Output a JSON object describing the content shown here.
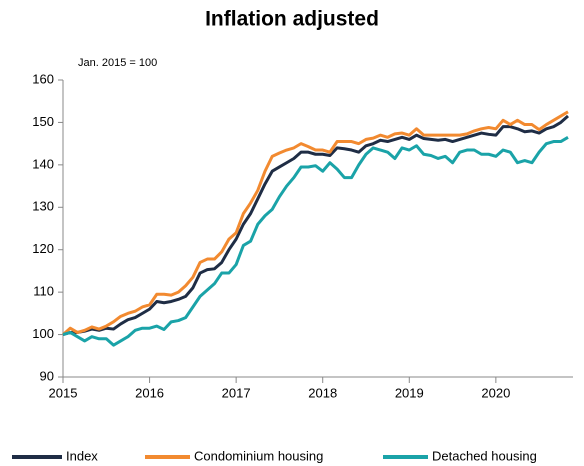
{
  "chart_data": {
    "type": "line",
    "title": "Inflation adjusted",
    "annotation": "Jan. 2015 = 100",
    "categories": [
      "2015",
      null,
      null,
      null,
      null,
      null,
      null,
      null,
      null,
      null,
      null,
      null,
      "2016",
      null,
      null,
      null,
      null,
      null,
      null,
      null,
      null,
      null,
      null,
      null,
      "2017",
      null,
      null,
      null,
      null,
      null,
      null,
      null,
      null,
      null,
      null,
      null,
      "2018",
      null,
      null,
      null,
      null,
      null,
      null,
      null,
      null,
      null,
      null,
      null,
      "2019",
      null,
      null,
      null,
      null,
      null,
      null,
      null,
      null,
      null,
      null,
      null,
      "2020",
      null,
      null,
      null,
      null,
      null,
      null,
      null,
      null,
      null,
      null
    ],
    "series": [
      {
        "name": "Index",
        "color": "#1f2d45",
        "values": [
          100,
          100.5,
          100.5,
          100.8,
          101.3,
          101,
          101.5,
          101.3,
          102.5,
          103.5,
          104,
          105,
          106,
          107.8,
          107.5,
          107.8,
          108.3,
          109,
          111,
          114.5,
          115.3,
          115.5,
          117,
          120,
          122.5,
          126,
          128.5,
          132,
          135.5,
          138.5,
          139.5,
          140.5,
          141.5,
          143,
          143,
          142.5,
          142.5,
          142.2,
          144,
          143.8,
          143.5,
          143,
          144.5,
          145,
          145.8,
          145.5,
          146,
          146.5,
          146,
          147,
          146.2,
          146,
          145.8,
          146,
          145.5,
          146,
          146.5,
          147,
          147.5,
          147.2,
          147,
          149,
          149,
          148.5,
          147.8,
          148,
          147.5,
          148.5,
          149,
          150,
          151.5
        ]
      },
      {
        "name": "Condominium housing",
        "color": "#f28a30",
        "values": [
          100,
          101.5,
          100.5,
          101,
          101.8,
          101.3,
          102,
          103,
          104.3,
          105,
          105.5,
          106.5,
          107,
          109.5,
          109.5,
          109.3,
          110,
          111.5,
          113.5,
          117,
          117.8,
          117.8,
          119.5,
          122.5,
          124,
          128.5,
          131,
          134,
          138.5,
          142,
          142.8,
          143.5,
          144,
          145,
          144.3,
          143.5,
          143.5,
          143,
          145.5,
          145.5,
          145.5,
          145,
          146,
          146.3,
          147,
          146.5,
          147.3,
          147.5,
          147,
          148.5,
          147,
          147,
          147,
          147,
          147,
          147,
          147.3,
          148,
          148.5,
          148.8,
          148.5,
          150.5,
          149.5,
          150.5,
          149.5,
          149.5,
          148.3,
          149.5,
          150.5,
          151.5,
          152.5
        ]
      },
      {
        "name": "Detached housing",
        "color": "#1aa3a8",
        "values": [
          100,
          100.5,
          99.5,
          98.5,
          99.5,
          99,
          99,
          97.5,
          98.5,
          99.5,
          101,
          101.5,
          101.5,
          102,
          101.2,
          103,
          103.3,
          104,
          106.5,
          109,
          110.5,
          112,
          114.5,
          114.5,
          116.5,
          121,
          122,
          126,
          128,
          129.5,
          132.5,
          135,
          137,
          139.5,
          139.5,
          139.8,
          138.5,
          140.5,
          139,
          137,
          137,
          140,
          142.5,
          144,
          143.5,
          143,
          141.5,
          144,
          143.5,
          144.5,
          142.5,
          142.2,
          141.5,
          142,
          140.5,
          143,
          143.5,
          143.5,
          142.5,
          142.5,
          142,
          143.5,
          143,
          140.5,
          141,
          140.5,
          143,
          145,
          145.5,
          145.5,
          146.5
        ]
      }
    ],
    "ylim": [
      90,
      160
    ],
    "yticks": [
      90,
      100,
      110,
      120,
      130,
      140,
      150,
      160
    ],
    "legend": "bottom"
  }
}
